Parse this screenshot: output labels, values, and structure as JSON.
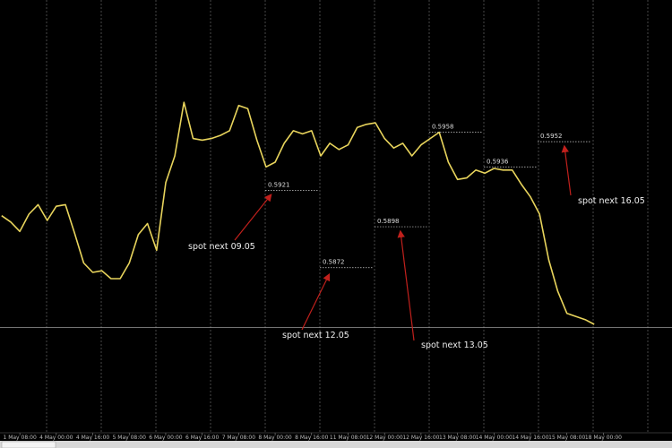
{
  "chart_data": {
    "type": "line",
    "x": [
      -8,
      -4,
      0,
      4,
      8,
      12,
      16,
      20,
      24,
      28,
      32,
      36,
      40,
      44,
      48,
      52,
      56,
      60,
      64,
      68,
      72,
      76,
      80,
      84,
      88,
      92,
      96,
      100,
      104,
      108,
      112,
      116,
      120,
      124,
      128,
      132,
      136,
      140,
      144,
      148,
      152,
      156,
      160,
      164,
      168,
      172,
      176,
      180,
      184,
      188,
      192,
      196,
      200,
      204,
      208,
      212,
      216,
      220,
      224,
      228,
      232,
      236,
      240,
      244,
      248,
      252
    ],
    "series": [
      {
        "color": "#e8d45c",
        "values": [
          0.5905,
          0.5901,
          0.5895,
          0.5906,
          0.5912,
          0.5902,
          0.5911,
          0.5912,
          0.5894,
          0.5875,
          0.5869,
          0.587,
          0.5865,
          0.5865,
          0.5875,
          0.5893,
          0.59,
          0.5883,
          0.5926,
          0.5943,
          0.5977,
          0.5954,
          0.5953,
          0.5954,
          0.5956,
          0.5959,
          0.5975,
          0.5973,
          0.5953,
          0.5936,
          0.5939,
          0.5951,
          0.5959,
          0.5957,
          0.5959,
          0.5943,
          0.5951,
          0.5947,
          0.595,
          0.5961,
          0.5963,
          0.5964,
          0.5954,
          0.5948,
          0.5951,
          0.5943,
          0.595,
          0.5954,
          0.5958,
          0.5939,
          0.5928,
          0.5929,
          0.5934,
          0.5932,
          0.5935,
          0.5934,
          0.5934,
          0.5925,
          0.5917,
          0.5906,
          0.5877,
          0.5857,
          0.5843,
          0.5841,
          0.5839,
          0.5836
        ]
      }
    ],
    "xlim": [
      -8.7,
      286.1
    ],
    "ylim": [
      0.5766,
      0.6042
    ],
    "xticks": [
      {
        "value": 0,
        "label": "1 May 08:00"
      },
      {
        "value": 16,
        "label": "4 May 00:00"
      },
      {
        "value": 32,
        "label": "4 May 16:00"
      },
      {
        "value": 48,
        "label": "5 May 08:00"
      },
      {
        "value": 64,
        "label": "6 May 00:00"
      },
      {
        "value": 80,
        "label": "6 May 16:00"
      },
      {
        "value": 96,
        "label": "7 May 08:00"
      },
      {
        "value": 112,
        "label": "8 May 00:00"
      },
      {
        "value": 128,
        "label": "8 May 16:00"
      },
      {
        "value": 144,
        "label": "11 May 08:00"
      },
      {
        "value": 160,
        "label": "12 May 00:00"
      },
      {
        "value": 176,
        "label": "12 May 16:00"
      },
      {
        "value": 192,
        "label": "13 May 08:00"
      },
      {
        "value": 208,
        "label": "14 May 00:00"
      },
      {
        "value": 224,
        "label": "14 May 16:00"
      },
      {
        "value": 240,
        "label": "15 May 08:00"
      },
      {
        "value": 256,
        "label": "18 May 00:00"
      }
    ],
    "price_line": 0.5834,
    "levels": [
      {
        "value": 0.5921,
        "note": "spot next 09.05"
      },
      {
        "value": 0.5872,
        "note": "spot next 12.05"
      },
      {
        "value": 0.5898,
        "note": "spot next 13.05"
      },
      {
        "value": 0.5958
      },
      {
        "value": 0.5936
      },
      {
        "value": 0.5952,
        "note": "spot next 16.05"
      }
    ]
  }
}
